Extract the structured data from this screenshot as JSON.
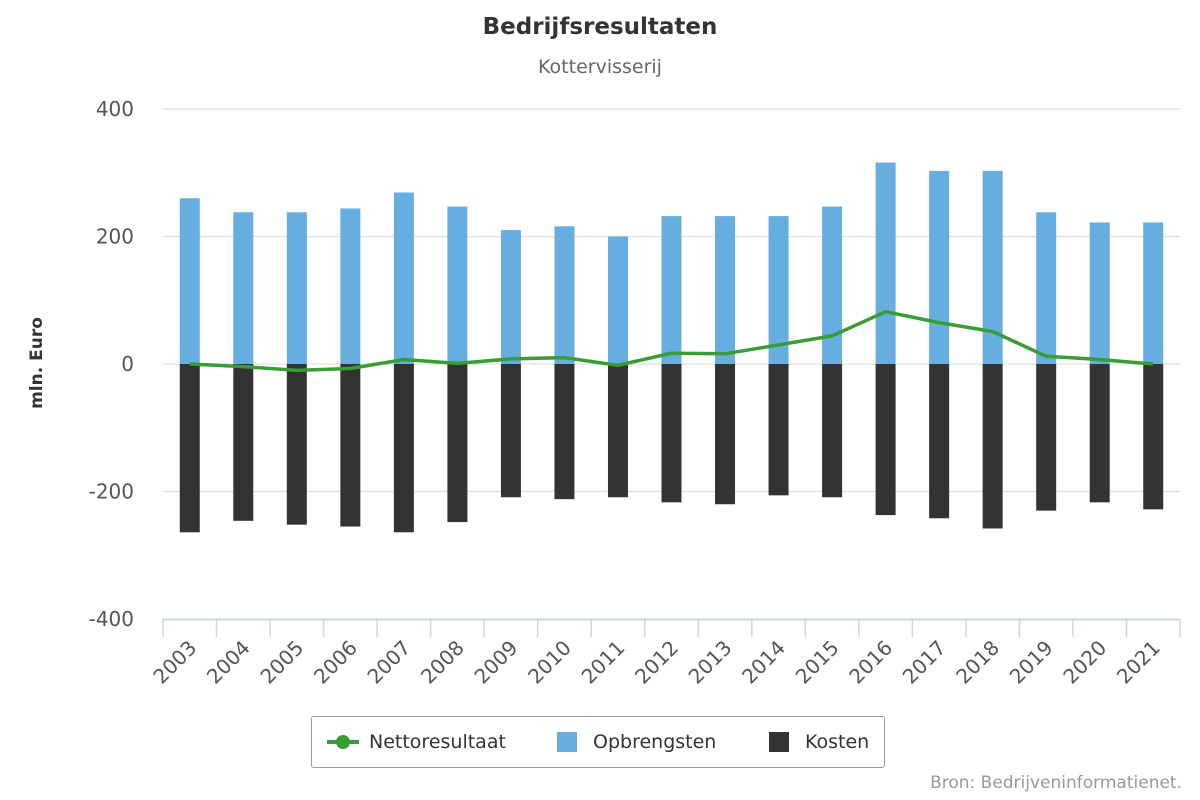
{
  "chart_data": {
    "type": "bar",
    "title": "Bedrijfsresultaten",
    "subtitle": "Kottervisserij",
    "ylabel": "mln. Euro",
    "xlabel": "",
    "ylim": [
      -400,
      400
    ],
    "y_ticks": [
      "400",
      "200",
      "0",
      "-200",
      "-400"
    ],
    "y_tick_values": [
      400,
      200,
      0,
      -200,
      -400
    ],
    "grid": true,
    "legend_position": "bottom-center",
    "categories": [
      "2003",
      "2004",
      "2005",
      "2006",
      "2007",
      "2008",
      "2009",
      "2010",
      "2011",
      "2012",
      "2013",
      "2014",
      "2015",
      "2016",
      "2017",
      "2018",
      "2019",
      "2020",
      "2021"
    ],
    "series": [
      {
        "name": "Nettoresultaat",
        "type": "line",
        "color": "#3a9c34",
        "values": [
          0,
          -4,
          -10,
          -7,
          7,
          1,
          8,
          10,
          -2,
          17,
          16,
          30,
          44,
          82,
          65,
          51,
          12,
          7,
          0
        ]
      },
      {
        "name": "Opbrengsten",
        "type": "bar",
        "color": "#66ade0",
        "values": [
          260,
          238,
          238,
          244,
          269,
          247,
          210,
          216,
          200,
          232,
          232,
          232,
          247,
          316,
          303,
          303,
          238,
          222,
          222
        ]
      },
      {
        "name": "Kosten",
        "type": "bar",
        "color": "#333333",
        "values": [
          -264,
          -246,
          -252,
          -255,
          -264,
          -248,
          -209,
          -212,
          -209,
          -217,
          -220,
          -206,
          -209,
          -237,
          -242,
          -258,
          -230,
          -217,
          -228
        ]
      }
    ],
    "credits": "Bron: Bedrijveninformatienet."
  }
}
